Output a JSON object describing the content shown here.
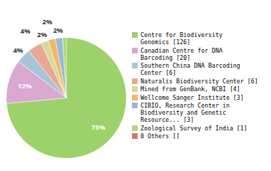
{
  "chart_data": {
    "type": "pie",
    "categories": [
      "Centre for Biodiversity\nGenomics [126]",
      "Canadian Centre for DNA\nBarcoding [20]",
      "Southern China DNA Barcoding\nCenter [6]",
      "Naturalis Biodiversity Center [6]",
      "Mined from GenBank, NCBI [4]",
      "Wellcome Sanger Institute [3]",
      "CIBIO, Research Center in\nBiodiversity and Genetic\nResource... [3]",
      "Zoological Survey of India [1]",
      "0 Others []"
    ],
    "values": [
      75,
      12,
      4,
      4,
      2,
      2,
      2,
      1,
      0
    ],
    "value_labels": [
      "75%",
      "12%",
      "4%",
      "4%",
      "2%",
      "2%",
      "2%",
      null,
      null
    ],
    "colors": [
      "#9dd16a",
      "#d8a8d0",
      "#a8c4d8",
      "#e8a898",
      "#d8d898",
      "#f0b868",
      "#98b8d8",
      "#b0d878",
      "#d47868"
    ],
    "data_labels": true,
    "legend": "right"
  }
}
